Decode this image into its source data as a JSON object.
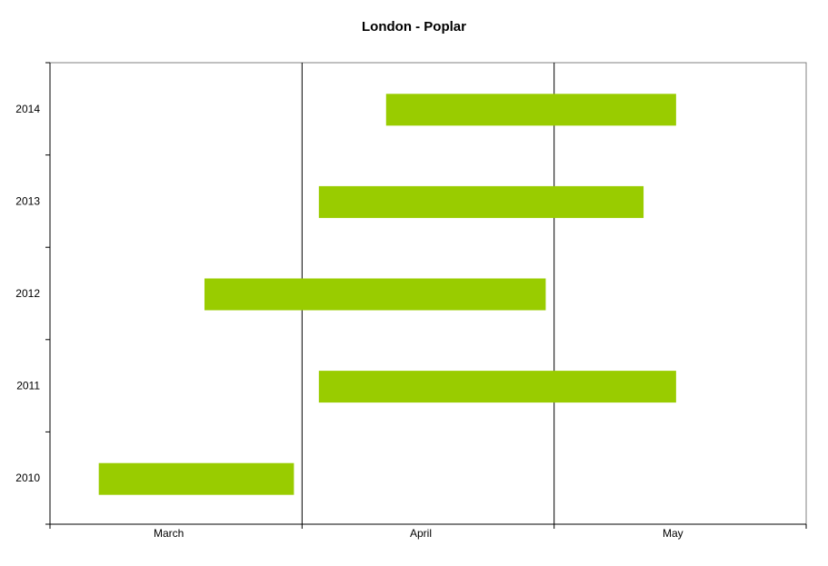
{
  "chart_data": {
    "type": "bar",
    "orientation": "horizontal-range",
    "title": "London - Poplar",
    "xlabel": "",
    "ylabel": "",
    "x_ticks": [
      "March",
      "April",
      "May"
    ],
    "categories": [
      "2010",
      "2011",
      "2012",
      "2013",
      "2014"
    ],
    "series": [
      {
        "bar_color": "#99cc00",
        "ranges": [
          {
            "year": "2010",
            "start": "2010-03-07",
            "end": "2010-03-31"
          },
          {
            "year": "2011",
            "start": "2011-04-03",
            "end": "2011-05-16"
          },
          {
            "year": "2012",
            "start": "2012-03-20",
            "end": "2012-04-30"
          },
          {
            "year": "2013",
            "start": "2013-04-03",
            "end": "2013-05-12"
          },
          {
            "year": "2014",
            "start": "2014-04-11",
            "end": "2014-05-16"
          }
        ]
      }
    ],
    "grid": true,
    "legend": "none"
  }
}
